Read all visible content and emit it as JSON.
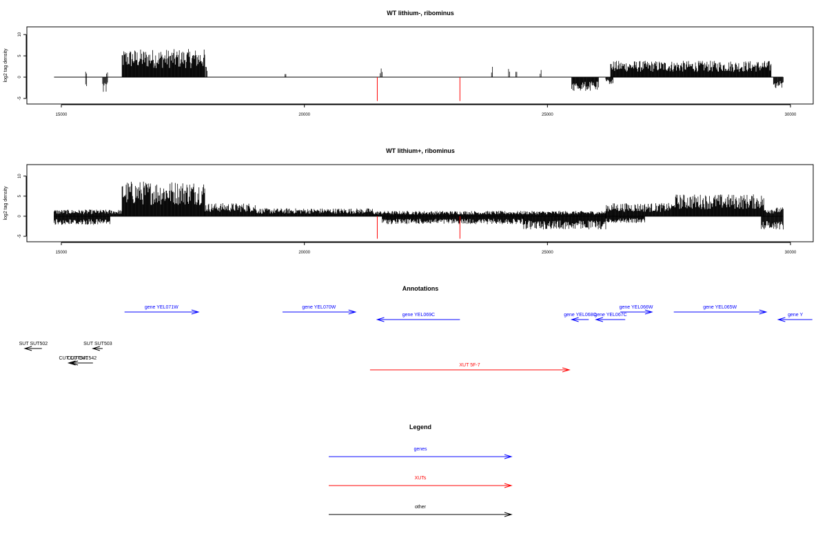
{
  "chart_data": [
    {
      "type": "bar",
      "title": "WT lithium-, ribominus",
      "ylabel": "log2 tag density",
      "xlim": [
        14850,
        29850
      ],
      "ylim": [
        -5.5,
        11
      ],
      "xticks": [
        15000,
        20000,
        25000,
        30000
      ],
      "yticks": [
        -5,
        0,
        5,
        10
      ],
      "baseline": 0,
      "series": [
        {
          "strand": "plus",
          "color": "#000000",
          "regions": [
            [
              15500,
              15520,
              1.5
            ],
            [
              15930,
              15950,
              1.0
            ],
            [
              16250,
              17950,
              6.0
            ],
            [
              17950,
              18000,
              2.5
            ],
            [
              19600,
              19620,
              1.0
            ],
            [
              21560,
              21600,
              2.0
            ],
            [
              23850,
              23870,
              3.0
            ],
            [
              24200,
              24220,
              3.0
            ],
            [
              24350,
              24370,
              2.8
            ],
            [
              24850,
              24870,
              1.8
            ],
            [
              26300,
              29600,
              3.5
            ]
          ]
        },
        {
          "strand": "minus",
          "color": "#000000",
          "regions": [
            [
              15500,
              15520,
              -3.0
            ],
            [
              15850,
              15950,
              -3.5
            ],
            [
              25500,
              26050,
              -3.0
            ],
            [
              26200,
              26350,
              -1.5
            ],
            [
              29650,
              29850,
              -2.5
            ]
          ]
        },
        {
          "strand": "red",
          "color": "#ff0000",
          "lines": [
            [
              21500,
              -5.6
            ],
            [
              23200,
              -5.6
            ]
          ]
        }
      ]
    },
    {
      "type": "bar",
      "title": "WT lithium+, ribominus",
      "ylabel": "log2 tag density",
      "xlim": [
        14850,
        29850
      ],
      "ylim": [
        -5.5,
        12
      ],
      "xticks": [
        15000,
        20000,
        25000,
        30000
      ],
      "yticks": [
        -5,
        0,
        5,
        10
      ],
      "baseline": 0,
      "series": [
        {
          "strand": "plus",
          "color": "#000000",
          "regions": [
            [
              14850,
              16250,
              1.5
            ],
            [
              16250,
              17950,
              8.0
            ],
            [
              17950,
              19000,
              3.0
            ],
            [
              19000,
              21400,
              1.8
            ],
            [
              21400,
              26200,
              1.2
            ],
            [
              26200,
              27600,
              3.0
            ],
            [
              27600,
              29450,
              5.0
            ],
            [
              29450,
              29850,
              2.0
            ]
          ]
        },
        {
          "strand": "minus",
          "color": "#000000",
          "regions": [
            [
              14850,
              16000,
              -2.0
            ],
            [
              21600,
              24500,
              -1.8
            ],
            [
              24500,
              26200,
              -3.0
            ],
            [
              26200,
              27000,
              -1.5
            ],
            [
              29400,
              29850,
              -3.0
            ]
          ]
        },
        {
          "strand": "red",
          "color": "#ff0000",
          "lines": [
            [
              21500,
              -5.6
            ],
            [
              23200,
              -5.6
            ]
          ]
        }
      ]
    }
  ],
  "annotations": {
    "title": "Annotations",
    "features": [
      {
        "label": "gene YEL071W",
        "x0": 16300,
        "x1": 17820,
        "row": 0,
        "dir": "right",
        "color": "#0000ff"
      },
      {
        "label": "gene YEL070W",
        "x0": 19550,
        "x1": 21050,
        "row": 0,
        "dir": "right",
        "color": "#0000ff"
      },
      {
        "label": "gene YEL069C",
        "x0": 21500,
        "x1": 23200,
        "row": 1,
        "dir": "left",
        "color": "#0000ff"
      },
      {
        "label": "gene YEL068C",
        "x0": 25500,
        "x1": 25850,
        "row": 1,
        "dir": "left",
        "color": "#0000ff"
      },
      {
        "label": "gene YEL067C",
        "x0": 26000,
        "x1": 26600,
        "row": 1,
        "dir": "left",
        "color": "#0000ff"
      },
      {
        "label": "gene YEL066W",
        "x0": 26500,
        "x1": 27150,
        "row": 0,
        "dir": "right",
        "color": "#0000ff"
      },
      {
        "label": "gene YEL065W",
        "x0": 27600,
        "x1": 29500,
        "row": 0,
        "dir": "right",
        "color": "#0000ff"
      },
      {
        "label": "gene Y",
        "x0": 29750,
        "x1": 30450,
        "row": 1,
        "dir": "left",
        "color": "#0000ff"
      },
      {
        "label": "SUT SUT502",
        "x0": 14250,
        "x1": 14600,
        "row": 2,
        "dir": "left",
        "color": "#000000"
      },
      {
        "label": "SUT SUT503",
        "x0": 15650,
        "x1": 15850,
        "row": 2,
        "dir": "left",
        "color": "#000000"
      },
      {
        "label": "CUT CUT542",
        "x0": 15200,
        "x1": 15650,
        "row": 3,
        "dir": "left",
        "color": "#000000"
      },
      {
        "label": "CUT CUT541",
        "x0": 15150,
        "x1": 15350,
        "row": 3,
        "dir": "left",
        "color": "#000000"
      },
      {
        "label": "XUT 5F-7",
        "x0": 21350,
        "x1": 25450,
        "row": 4,
        "dir": "right",
        "color": "#ff0000"
      }
    ]
  },
  "legend": {
    "title": "Legend",
    "items": [
      {
        "label": "genes",
        "color": "#0000ff"
      },
      {
        "label": "XUTs",
        "color": "#ff0000"
      },
      {
        "label": "other",
        "color": "#000000"
      }
    ]
  }
}
